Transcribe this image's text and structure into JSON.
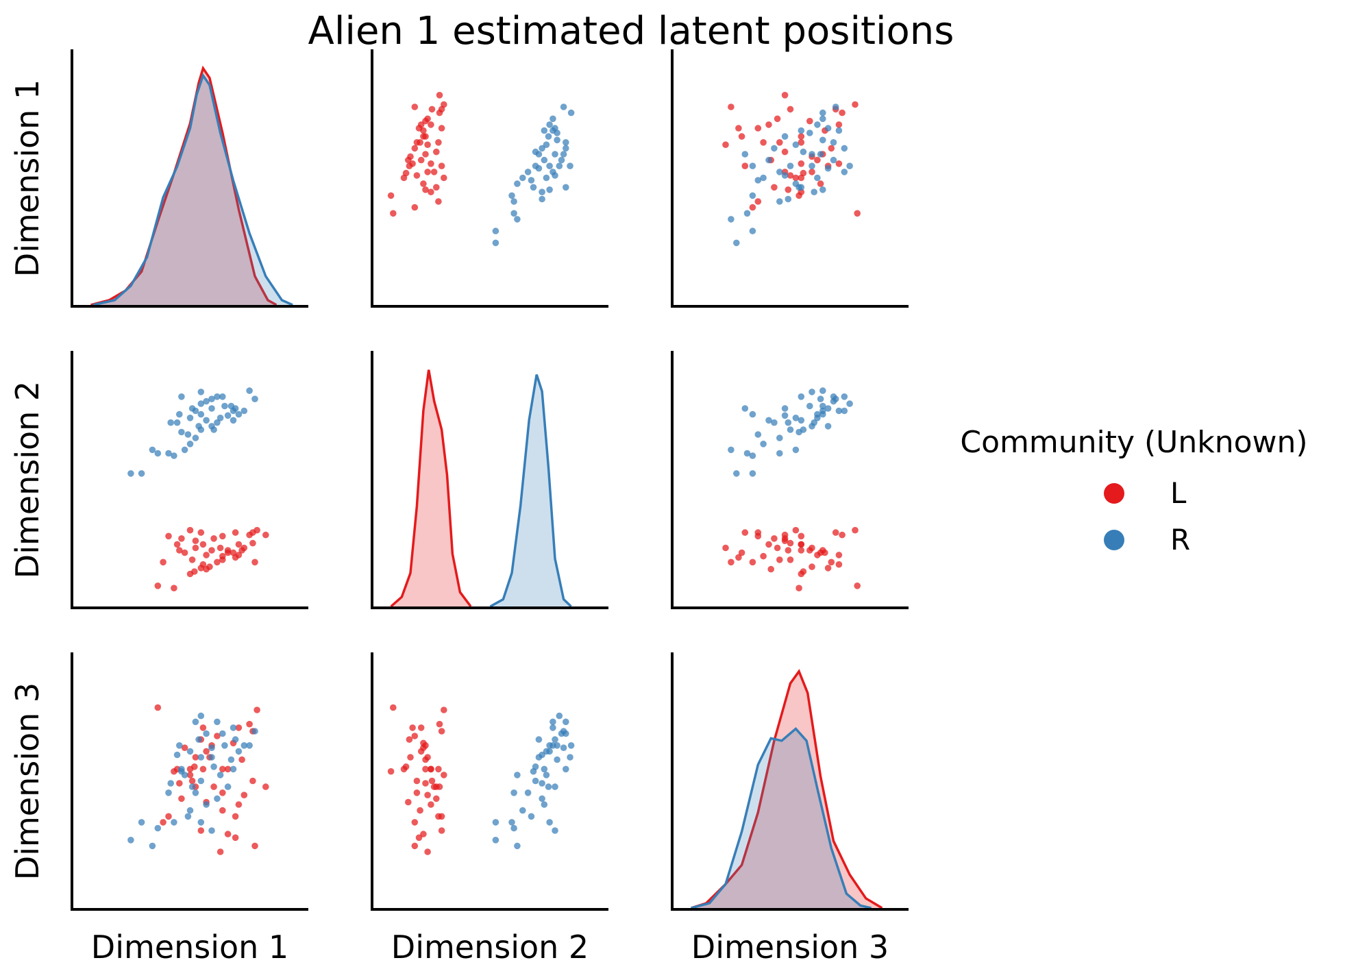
{
  "chart_data": {
    "type": "pairplot",
    "title": "Alien 1 estimated latent positions",
    "variables": [
      "Dimension 1",
      "Dimension 2",
      "Dimension 3"
    ],
    "diagonal": "kde",
    "off_diagonal": "scatter",
    "grid": false,
    "legend": {
      "title": "Community (Unknown)",
      "placement": "right",
      "entries": [
        {
          "label": "L",
          "color": "#e41a1c"
        },
        {
          "label": "R",
          "color": "#377eb8"
        }
      ]
    },
    "value_range": [
      -1,
      1
    ],
    "kde_curves": {
      "Dimension 1": {
        "L": [
          [
            -0.92,
            0.0
          ],
          [
            -0.75,
            0.02
          ],
          [
            -0.6,
            0.06
          ],
          [
            -0.45,
            0.14
          ],
          [
            -0.3,
            0.35
          ],
          [
            -0.15,
            0.55
          ],
          [
            0.0,
            0.76
          ],
          [
            0.08,
            0.93
          ],
          [
            0.12,
            0.99
          ],
          [
            0.18,
            0.95
          ],
          [
            0.3,
            0.72
          ],
          [
            0.45,
            0.4
          ],
          [
            0.6,
            0.12
          ],
          [
            0.72,
            0.02
          ],
          [
            0.8,
            0.0
          ]
        ],
        "R": [
          [
            -0.9,
            0.0
          ],
          [
            -0.7,
            0.02
          ],
          [
            -0.55,
            0.08
          ],
          [
            -0.4,
            0.2
          ],
          [
            -0.25,
            0.45
          ],
          [
            -0.12,
            0.58
          ],
          [
            0.0,
            0.74
          ],
          [
            0.06,
            0.88
          ],
          [
            0.12,
            0.96
          ],
          [
            0.18,
            0.92
          ],
          [
            0.28,
            0.72
          ],
          [
            0.4,
            0.52
          ],
          [
            0.55,
            0.3
          ],
          [
            0.7,
            0.12
          ],
          [
            0.85,
            0.02
          ],
          [
            0.95,
            0.0
          ]
        ]
      },
      "Dimension 2": {
        "L": [
          [
            -0.92,
            0.0
          ],
          [
            -0.82,
            0.04
          ],
          [
            -0.74,
            0.14
          ],
          [
            -0.68,
            0.42
          ],
          [
            -0.62,
            0.82
          ],
          [
            -0.57,
            0.99
          ],
          [
            -0.52,
            0.86
          ],
          [
            -0.45,
            0.74
          ],
          [
            -0.4,
            0.55
          ],
          [
            -0.35,
            0.22
          ],
          [
            -0.28,
            0.06
          ],
          [
            -0.18,
            0.0
          ]
        ],
        "R": [
          [
            0.0,
            0.0
          ],
          [
            0.12,
            0.03
          ],
          [
            0.2,
            0.14
          ],
          [
            0.28,
            0.42
          ],
          [
            0.36,
            0.78
          ],
          [
            0.43,
            0.97
          ],
          [
            0.48,
            0.9
          ],
          [
            0.54,
            0.58
          ],
          [
            0.6,
            0.2
          ],
          [
            0.68,
            0.03
          ],
          [
            0.75,
            0.0
          ]
        ]
      },
      "Dimension 3": {
        "L": [
          [
            -0.92,
            0.0
          ],
          [
            -0.78,
            0.02
          ],
          [
            -0.6,
            0.1
          ],
          [
            -0.45,
            0.18
          ],
          [
            -0.3,
            0.4
          ],
          [
            -0.15,
            0.7
          ],
          [
            0.0,
            0.94
          ],
          [
            0.08,
            0.99
          ],
          [
            0.16,
            0.9
          ],
          [
            0.28,
            0.55
          ],
          [
            0.4,
            0.28
          ],
          [
            0.55,
            0.14
          ],
          [
            0.7,
            0.04
          ],
          [
            0.85,
            0.0
          ]
        ],
        "R": [
          [
            -0.92,
            0.0
          ],
          [
            -0.75,
            0.02
          ],
          [
            -0.6,
            0.1
          ],
          [
            -0.45,
            0.32
          ],
          [
            -0.3,
            0.6
          ],
          [
            -0.18,
            0.71
          ],
          [
            -0.08,
            0.7
          ],
          [
            0.05,
            0.75
          ],
          [
            0.15,
            0.7
          ],
          [
            0.25,
            0.5
          ],
          [
            0.38,
            0.25
          ],
          [
            0.52,
            0.06
          ],
          [
            0.65,
            0.01
          ],
          [
            0.75,
            0.0
          ]
        ]
      }
    },
    "points": {
      "L": [
        [
          0.3,
          -0.65,
          -0.25
        ],
        [
          0.35,
          -0.6,
          0.1
        ],
        [
          0.28,
          -0.58,
          -0.6
        ],
        [
          0.42,
          -0.45,
          -0.3
        ],
        [
          0.35,
          -0.62,
          -0.45
        ],
        [
          -0.3,
          -0.9,
          0.62
        ],
        [
          -0.15,
          -0.92,
          0.08
        ],
        [
          0.7,
          -0.47,
          -0.05
        ],
        [
          0.55,
          -0.47,
          0.48
        ],
        [
          0.58,
          -0.45,
          0.42
        ],
        [
          0.62,
          -0.43,
          0.6
        ],
        [
          0.45,
          -0.55,
          -0.2
        ],
        [
          0.5,
          -0.58,
          -0.12
        ],
        [
          0.58,
          -0.54,
          0.0
        ],
        [
          0.48,
          -0.6,
          0.18
        ],
        [
          0.4,
          -0.62,
          0.32
        ],
        [
          0.45,
          -0.64,
          0.45
        ],
        [
          0.42,
          -0.66,
          -0.48
        ],
        [
          0.3,
          -0.68,
          -0.1
        ],
        [
          0.25,
          -0.7,
          0.38
        ],
        [
          0.12,
          -0.72,
          0.45
        ],
        [
          0.18,
          -0.74,
          0.2
        ],
        [
          0.1,
          -0.75,
          0.35
        ],
        [
          0.04,
          -0.78,
          0.12
        ],
        [
          0.15,
          -0.76,
          -0.18
        ],
        [
          0.0,
          -0.8,
          0.1
        ],
        [
          -0.05,
          -0.62,
          0.28
        ],
        [
          0.2,
          -0.6,
          0.3
        ],
        [
          0.12,
          -0.55,
          0.1
        ],
        [
          0.05,
          -0.52,
          -0.05
        ],
        [
          -0.08,
          -0.5,
          -0.15
        ],
        [
          -0.2,
          -0.48,
          -0.3
        ],
        [
          0.1,
          -0.45,
          -0.42
        ],
        [
          0.0,
          -0.43,
          0.05
        ],
        [
          0.22,
          -0.5,
          -0.05
        ],
        [
          0.3,
          -0.48,
          0.1
        ],
        [
          0.15,
          -0.64,
          0.25
        ],
        [
          0.05,
          -0.58,
          0.2
        ],
        [
          -0.1,
          -0.6,
          -0.02
        ],
        [
          0.02,
          -0.68,
          0.0
        ],
        [
          -0.25,
          -0.7,
          -0.35
        ],
        [
          -0.12,
          -0.55,
          0.1
        ],
        [
          0.6,
          -0.7,
          -0.55
        ]
      ],
      "R": [
        [
          0.3,
          0.7,
          0.4
        ],
        [
          0.25,
          0.7,
          0.5
        ],
        [
          0.4,
          0.58,
          0.45
        ],
        [
          0.32,
          0.62,
          0.3
        ],
        [
          0.6,
          0.68,
          0.42
        ],
        [
          0.55,
          0.75,
          0.3
        ],
        [
          -0.45,
          0.05,
          -0.35
        ],
        [
          -0.55,
          0.05,
          -0.5
        ],
        [
          -0.15,
          0.2,
          -0.35
        ],
        [
          -0.2,
          0.22,
          -0.1
        ],
        [
          -0.05,
          0.25,
          0.05
        ],
        [
          0.0,
          0.3,
          -0.25
        ],
        [
          -0.3,
          0.22,
          -0.4
        ],
        [
          -0.35,
          0.25,
          -0.55
        ],
        [
          0.05,
          0.35,
          -0.1
        ],
        [
          0.1,
          0.42,
          0.0
        ],
        [
          0.2,
          0.45,
          0.2
        ],
        [
          0.25,
          0.48,
          -0.15
        ],
        [
          0.4,
          0.5,
          0.1
        ],
        [
          0.35,
          0.54,
          -0.05
        ],
        [
          0.45,
          0.55,
          0.25
        ],
        [
          0.5,
          0.58,
          0.3
        ],
        [
          0.42,
          0.6,
          0.35
        ],
        [
          0.15,
          0.5,
          -0.2
        ],
        [
          -0.08,
          0.4,
          0.08
        ],
        [
          0.08,
          0.45,
          0.35
        ],
        [
          -0.12,
          0.48,
          0.22
        ],
        [
          0.0,
          0.52,
          0.25
        ],
        [
          -0.1,
          0.55,
          0.3
        ],
        [
          0.05,
          0.58,
          0.5
        ],
        [
          0.1,
          0.64,
          0.55
        ],
        [
          0.15,
          0.66,
          0.4
        ],
        [
          0.2,
          0.68,
          0.28
        ],
        [
          -0.08,
          0.7,
          0.1
        ],
        [
          0.1,
          0.74,
          0.2
        ],
        [
          0.02,
          0.6,
          -0.05
        ],
        [
          -0.18,
          0.48,
          -0.02
        ],
        [
          0.22,
          0.42,
          0.12
        ],
        [
          0.28,
          0.52,
          0.05
        ],
        [
          0.38,
          0.62,
          0.18
        ],
        [
          -0.02,
          0.38,
          -0.3
        ],
        [
          0.2,
          0.6,
          -0.42
        ],
        [
          0.1,
          0.55,
          -0.35
        ]
      ]
    }
  }
}
